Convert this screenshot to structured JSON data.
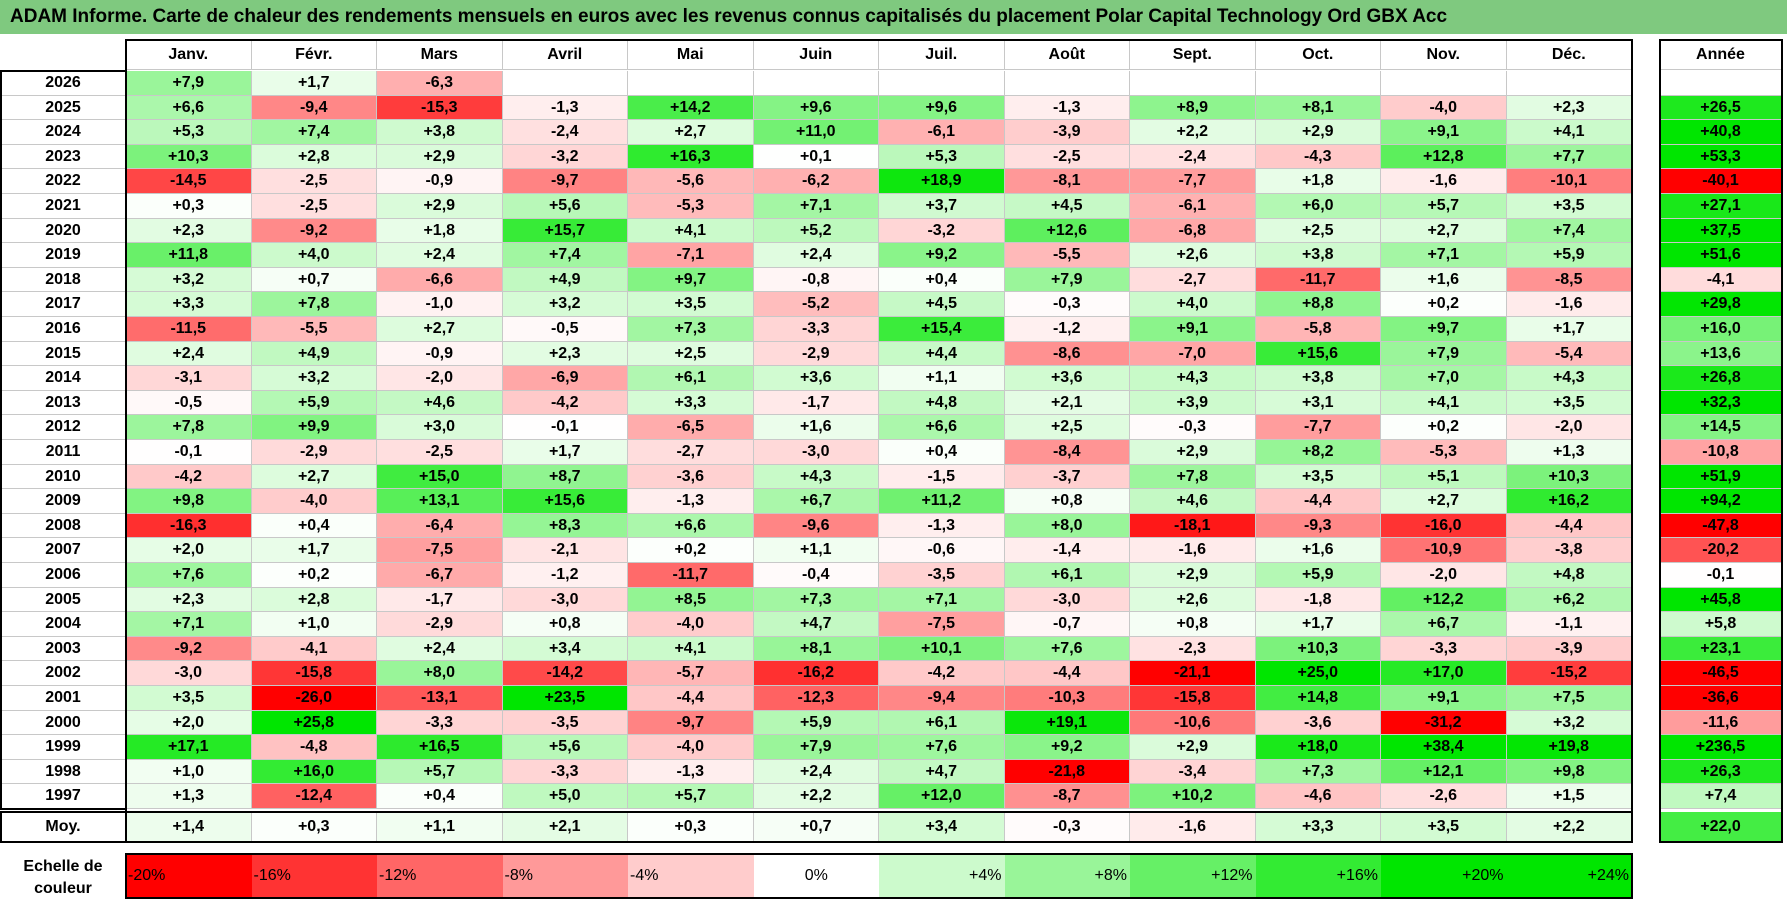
{
  "title": "ADAM Informe. Carte de chaleur des rendements mensuels en euros avec les revenus connus capitalisés du placement Polar Capital Technology Ord GBX Acc",
  "chart_data": {
    "type": "heatmap",
    "title": "ADAM Informe. Carte de chaleur des rendements mensuels en euros avec les revenus connus capitalisés du placement Polar Capital Technology Ord GBX Acc",
    "months": [
      "Janv.",
      "Févr.",
      "Mars",
      "Avril",
      "Mai",
      "Juin",
      "Juil.",
      "Août",
      "Sept.",
      "Oct.",
      "Nov.",
      "Déc."
    ],
    "year_header": "Année",
    "rows": [
      {
        "year": "2026",
        "values": [
          "+7,9",
          "+1,7",
          "-6,3",
          "",
          "",
          "",
          "",
          "",
          "",
          "",
          "",
          ""
        ],
        "annual": ""
      },
      {
        "year": "2025",
        "values": [
          "+6,6",
          "-9,4",
          "-15,3",
          "-1,3",
          "+14,2",
          "+9,6",
          "+9,6",
          "-1,3",
          "+8,9",
          "+8,1",
          "-4,0",
          "+2,3"
        ],
        "annual": "+26,5"
      },
      {
        "year": "2024",
        "values": [
          "+5,3",
          "+7,4",
          "+3,8",
          "-2,4",
          "+2,7",
          "+11,0",
          "-6,1",
          "-3,9",
          "+2,2",
          "+2,9",
          "+9,1",
          "+4,1"
        ],
        "annual": "+40,8"
      },
      {
        "year": "2023",
        "values": [
          "+10,3",
          "+2,8",
          "+2,9",
          "-3,2",
          "+16,3",
          "+0,1",
          "+5,3",
          "-2,5",
          "-2,4",
          "-4,3",
          "+12,8",
          "+7,7"
        ],
        "annual": "+53,3"
      },
      {
        "year": "2022",
        "values": [
          "-14,5",
          "-2,5",
          "-0,9",
          "-9,7",
          "-5,6",
          "-6,2",
          "+18,9",
          "-8,1",
          "-7,7",
          "+1,8",
          "-1,6",
          "-10,1"
        ],
        "annual": "-40,1"
      },
      {
        "year": "2021",
        "values": [
          "+0,3",
          "-2,5",
          "+2,9",
          "+5,6",
          "-5,3",
          "+7,1",
          "+3,7",
          "+4,5",
          "-6,1",
          "+6,0",
          "+5,7",
          "+3,5"
        ],
        "annual": "+27,1"
      },
      {
        "year": "2020",
        "values": [
          "+2,3",
          "-9,2",
          "+1,8",
          "+15,7",
          "+4,1",
          "+5,2",
          "-3,2",
          "+12,6",
          "-6,8",
          "+2,5",
          "+2,7",
          "+7,4"
        ],
        "annual": "+37,5"
      },
      {
        "year": "2019",
        "values": [
          "+11,8",
          "+4,0",
          "+2,4",
          "+7,4",
          "-7,1",
          "+2,4",
          "+9,2",
          "-5,5",
          "+2,6",
          "+3,8",
          "+7,1",
          "+5,9"
        ],
        "annual": "+51,6"
      },
      {
        "year": "2018",
        "values": [
          "+3,2",
          "+0,7",
          "-6,6",
          "+4,9",
          "+9,7",
          "-0,8",
          "+0,4",
          "+7,9",
          "-2,7",
          "-11,7",
          "+1,6",
          "-8,5"
        ],
        "annual": "-4,1"
      },
      {
        "year": "2017",
        "values": [
          "+3,3",
          "+7,8",
          "-1,0",
          "+3,2",
          "+3,5",
          "-5,2",
          "+4,5",
          "-0,3",
          "+4,0",
          "+8,8",
          "+0,2",
          "-1,6"
        ],
        "annual": "+29,8"
      },
      {
        "year": "2016",
        "values": [
          "-11,5",
          "-5,5",
          "+2,7",
          "-0,5",
          "+7,3",
          "-3,3",
          "+15,4",
          "-1,2",
          "+9,1",
          "-5,8",
          "+9,7",
          "+1,7"
        ],
        "annual": "+16,0"
      },
      {
        "year": "2015",
        "values": [
          "+2,4",
          "+4,9",
          "-0,9",
          "+2,3",
          "+2,5",
          "-2,9",
          "+4,4",
          "-8,6",
          "-7,0",
          "+15,6",
          "+7,9",
          "-5,4"
        ],
        "annual": "+13,6"
      },
      {
        "year": "2014",
        "values": [
          "-3,1",
          "+3,2",
          "-2,0",
          "-6,9",
          "+6,1",
          "+3,6",
          "+1,1",
          "+3,6",
          "+4,3",
          "+3,8",
          "+7,0",
          "+4,3"
        ],
        "annual": "+26,8"
      },
      {
        "year": "2013",
        "values": [
          "-0,5",
          "+5,9",
          "+4,6",
          "-4,2",
          "+3,3",
          "-1,7",
          "+4,8",
          "+2,1",
          "+3,9",
          "+3,1",
          "+4,1",
          "+3,5"
        ],
        "annual": "+32,3"
      },
      {
        "year": "2012",
        "values": [
          "+7,8",
          "+9,9",
          "+3,0",
          "-0,1",
          "-6,5",
          "+1,6",
          "+6,6",
          "+2,5",
          "-0,3",
          "-7,7",
          "+0,2",
          "-2,0"
        ],
        "annual": "+14,5"
      },
      {
        "year": "2011",
        "values": [
          "-0,1",
          "-2,9",
          "-2,5",
          "+1,7",
          "-2,7",
          "-3,0",
          "+0,4",
          "-8,4",
          "+2,9",
          "+8,2",
          "-5,3",
          "+1,3"
        ],
        "annual": "-10,8"
      },
      {
        "year": "2010",
        "values": [
          "-4,2",
          "+2,7",
          "+15,0",
          "+8,7",
          "-3,6",
          "+4,3",
          "-1,5",
          "-3,7",
          "+7,8",
          "+3,5",
          "+5,1",
          "+10,3"
        ],
        "annual": "+51,9"
      },
      {
        "year": "2009",
        "values": [
          "+9,8",
          "-4,0",
          "+13,1",
          "+15,6",
          "-1,3",
          "+6,7",
          "+11,2",
          "+0,8",
          "+4,6",
          "-4,4",
          "+2,7",
          "+16,2"
        ],
        "annual": "+94,2"
      },
      {
        "year": "2008",
        "values": [
          "-16,3",
          "+0,4",
          "-6,4",
          "+8,3",
          "+6,6",
          "-9,6",
          "-1,3",
          "+8,0",
          "-18,1",
          "-9,3",
          "-16,0",
          "-4,4"
        ],
        "annual": "-47,8"
      },
      {
        "year": "2007",
        "values": [
          "+2,0",
          "+1,7",
          "-7,5",
          "-2,1",
          "+0,2",
          "+1,1",
          "-0,6",
          "-1,4",
          "-1,6",
          "+1,6",
          "-10,9",
          "-3,8"
        ],
        "annual": "-20,2"
      },
      {
        "year": "2006",
        "values": [
          "+7,6",
          "+0,2",
          "-6,7",
          "-1,2",
          "-11,7",
          "-0,4",
          "-3,5",
          "+6,1",
          "+2,9",
          "+5,9",
          "-2,0",
          "+4,8"
        ],
        "annual": "-0,1"
      },
      {
        "year": "2005",
        "values": [
          "+2,3",
          "+2,8",
          "-1,7",
          "-3,0",
          "+8,5",
          "+7,3",
          "+7,1",
          "-3,0",
          "+2,6",
          "-1,8",
          "+12,2",
          "+6,2"
        ],
        "annual": "+45,8"
      },
      {
        "year": "2004",
        "values": [
          "+7,1",
          "+1,0",
          "-2,9",
          "+0,8",
          "-4,0",
          "+4,7",
          "-7,5",
          "-0,7",
          "+0,8",
          "+1,7",
          "+6,7",
          "-1,1"
        ],
        "annual": "+5,8"
      },
      {
        "year": "2003",
        "values": [
          "-9,2",
          "-4,1",
          "+2,4",
          "+3,4",
          "+4,1",
          "+8,1",
          "+10,1",
          "+7,6",
          "-2,3",
          "+10,3",
          "-3,3",
          "-3,9"
        ],
        "annual": "+23,1"
      },
      {
        "year": "2002",
        "values": [
          "-3,0",
          "-15,8",
          "+8,0",
          "-14,2",
          "-5,7",
          "-16,2",
          "-4,2",
          "-4,4",
          "-21,1",
          "+25,0",
          "+17,0",
          "-15,2"
        ],
        "annual": "-46,5"
      },
      {
        "year": "2001",
        "values": [
          "+3,5",
          "-26,0",
          "-13,1",
          "+23,5",
          "-4,4",
          "-12,3",
          "-9,4",
          "-10,3",
          "-15,8",
          "+14,8",
          "+9,1",
          "+7,5"
        ],
        "annual": "-36,6"
      },
      {
        "year": "2000",
        "values": [
          "+2,0",
          "+25,8",
          "-3,3",
          "-3,5",
          "-9,7",
          "+5,9",
          "+6,1",
          "+19,1",
          "-10,6",
          "-3,6",
          "-31,2",
          "+3,2"
        ],
        "annual": "-11,6"
      },
      {
        "year": "1999",
        "values": [
          "+17,1",
          "-4,8",
          "+16,5",
          "+5,6",
          "-4,0",
          "+7,9",
          "+7,6",
          "+9,2",
          "+2,9",
          "+18,0",
          "+38,4",
          "+19,8"
        ],
        "annual": "+236,5"
      },
      {
        "year": "1998",
        "values": [
          "+1,0",
          "+16,0",
          "+5,7",
          "-3,3",
          "-1,3",
          "+2,4",
          "+4,7",
          "-21,8",
          "-3,4",
          "+7,3",
          "+12,1",
          "+9,8"
        ],
        "annual": "+26,3"
      },
      {
        "year": "1997",
        "values": [
          "+1,3",
          "-12,4",
          "+0,4",
          "+5,0",
          "+5,7",
          "+2,2",
          "+12,0",
          "-8,7",
          "+10,2",
          "-4,6",
          "-2,6",
          "+1,5"
        ],
        "annual": "+7,4"
      }
    ],
    "average": {
      "label": "Moy.",
      "values": [
        "+1,4",
        "+0,3",
        "+1,1",
        "+2,1",
        "+0,3",
        "+0,7",
        "+3,4",
        "-0,3",
        "-1,6",
        "+3,3",
        "+3,5",
        "+2,2"
      ],
      "annual": "+22,0"
    },
    "scale": {
      "label_line1": "Echelle de",
      "label_line2": "couleur",
      "steps": [
        {
          "label": "-20%",
          "value": -20
        },
        {
          "label": "-16%",
          "value": -16
        },
        {
          "label": "-12%",
          "value": -12
        },
        {
          "label": "-8%",
          "value": -8
        },
        {
          "label": "-4%",
          "value": -4
        },
        {
          "label": "0%",
          "value": 0
        },
        {
          "label": "+4%",
          "value": 4
        },
        {
          "label": "+8%",
          "value": 8
        },
        {
          "label": "+12%",
          "value": 12
        },
        {
          "label": "+16%",
          "value": 16
        },
        {
          "label": "+20%",
          "value": 20
        },
        {
          "label": "+24%",
          "value": 24
        }
      ]
    },
    "colors": {
      "negative_max": "#ff0000",
      "neutral": "#ffffff",
      "positive_max": "#00e600"
    }
  }
}
